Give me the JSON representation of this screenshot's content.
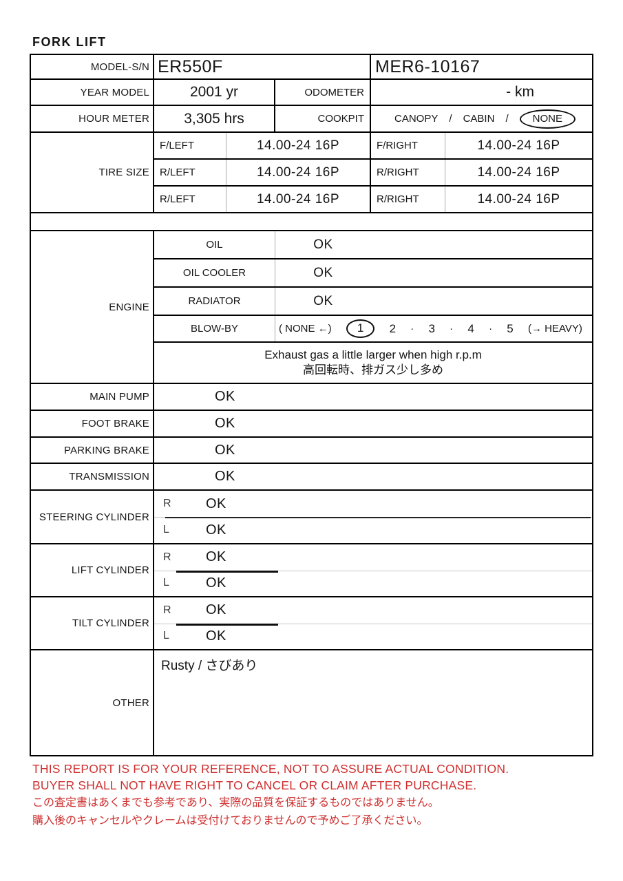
{
  "page_title": "FORK LIFT",
  "colors": {
    "border": "#000000",
    "light_line": "#a8a8a8",
    "disclaimer_red": "#cf2f2f",
    "text": "#151515"
  },
  "header": {
    "model_sn_label": "MODEL-S/N",
    "model_value": "ER550F",
    "serial_value": "MER6-10167",
    "year_label": "YEAR MODEL",
    "year_value": "2001 yr",
    "odometer_label": "ODOMETER",
    "odometer_value": "- km",
    "hour_label": "HOUR METER",
    "hour_value": "3,305 hrs",
    "cockpit_label": "COOKPIT",
    "cockpit_option_1": "CANOPY",
    "cockpit_sep_1": "/",
    "cockpit_option_2": "CABIN",
    "cockpit_sep_2": "/",
    "cockpit_option_3": "NONE",
    "cockpit_selected": "NONE"
  },
  "tire": {
    "label": "TIRE SIZE",
    "rows": [
      {
        "pos_left": "F/LEFT",
        "size_left": "14.00-24 16P",
        "pos_right": "F/RIGHT",
        "size_right": "14.00-24 16P"
      },
      {
        "pos_left": "R/LEFT",
        "size_left": "14.00-24 16P",
        "pos_right": "R/RIGHT",
        "size_right": "14.00-24 16P"
      },
      {
        "pos_left": "R/LEFT",
        "size_left": "14.00-24 16P",
        "pos_right": "R/RIGHT",
        "size_right": "14.00-24 16P"
      }
    ]
  },
  "engine": {
    "label": "ENGINE",
    "items": [
      {
        "label": "OIL",
        "value": "OK"
      },
      {
        "label": "OIL COOLER",
        "value": "OK"
      },
      {
        "label": "RADIATOR",
        "value": "OK"
      }
    ],
    "blowby": {
      "label": "BLOW-BY",
      "left_text": "( NONE ←)",
      "scale": [
        "1",
        "2",
        "3",
        "4",
        "5"
      ],
      "dot": "·",
      "selected": "1",
      "right_text": "(→ HEAVY)"
    },
    "comment_en": "Exhaust gas a little larger when high r.p.m",
    "comment_jp": "高回転時、排ガス少し多め"
  },
  "checks": [
    {
      "label": "MAIN PUMP",
      "value": "OK"
    },
    {
      "label": "FOOT BRAKE",
      "value": "OK"
    },
    {
      "label": "PARKING BRAKE",
      "value": "OK"
    },
    {
      "label": "TRANSMISSION",
      "value": "OK"
    }
  ],
  "cylinders": [
    {
      "label": "STEERING CYLINDER",
      "r_label": "R",
      "r_value": "OK",
      "l_label": "L",
      "l_value": "OK"
    },
    {
      "label": "LIFT CYLINDER",
      "r_label": "R",
      "r_value": "OK",
      "l_label": "L",
      "l_value": "OK"
    },
    {
      "label": "TILT CYLINDER",
      "r_label": "R",
      "r_value": "OK",
      "l_label": "L",
      "l_value": "OK"
    }
  ],
  "other": {
    "label": "OTHER",
    "value": "Rusty / さびあり"
  },
  "disclaimer": {
    "color": "#cf2f2f",
    "lines": [
      "THIS REPORT IS FOR YOUR REFERENCE, NOT TO ASSURE ACTUAL CONDITION.",
      "BUYER SHALL NOT HAVE RIGHT TO CANCEL OR CLAIM AFTER PURCHASE.",
      "この査定書はあくまでも参考であり、実際の品質を保証するものではありません。",
      "購入後のキャンセルやクレームは受付けておりませんので予めご了承ください。"
    ]
  }
}
